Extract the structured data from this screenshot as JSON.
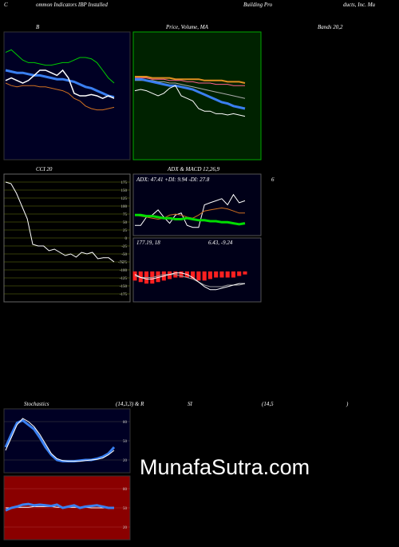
{
  "header": [
    "C",
    "ommon Indicators IBP Installed",
    "Building Pro",
    "ducts, Inc. Mu"
  ],
  "captions": {
    "row1": [
      "B",
      "Price, Volume, MA",
      "Bands 20,2"
    ],
    "row2": [
      "CCI 20",
      "ADX  & MACD 12,26,9",
      "6"
    ],
    "row3": [
      "Stochastics",
      "(14,3,3) & R",
      "SI",
      "(14,5",
      ")"
    ]
  },
  "watermark": "MunafaSutra.com",
  "chart_data": [
    {
      "type": "line",
      "background": "#000024",
      "ylim": [
        0,
        100
      ],
      "series": [
        {
          "color": "#00cc00",
          "values": [
            84,
            86,
            82,
            78,
            76,
            76,
            75,
            74,
            74,
            75,
            76,
            76,
            78,
            80,
            80,
            79,
            76,
            70,
            64,
            60
          ]
        },
        {
          "color": "#d07020",
          "values": [
            60,
            58,
            57,
            58,
            58,
            58,
            57,
            57,
            56,
            55,
            54,
            52,
            48,
            46,
            42,
            40,
            39,
            39,
            40,
            41
          ]
        },
        {
          "color": "#3a7ff0",
          "width": 3,
          "values": [
            70,
            69,
            68,
            68,
            67,
            66,
            66,
            65,
            64,
            63,
            63,
            62,
            61,
            59,
            57,
            56,
            54,
            52,
            50,
            49
          ]
        },
        {
          "color": "#ffffff",
          "width": 1.5,
          "values": [
            62,
            64,
            62,
            60,
            62,
            66,
            70,
            70,
            68,
            66,
            70,
            64,
            52,
            50,
            50,
            51,
            50,
            48,
            50,
            48
          ]
        }
      ]
    },
    {
      "type": "line",
      "background": "#002200",
      "ylim": [
        0,
        100
      ],
      "series": [
        {
          "color": "#e09020",
          "width": 2,
          "values": [
            65,
            65,
            65,
            64,
            64,
            64,
            64,
            63,
            63,
            63,
            63,
            63,
            62,
            62,
            62,
            62,
            61,
            61,
            61,
            60
          ]
        },
        {
          "color": "#ff6090",
          "values": [
            64,
            64,
            64,
            63,
            63,
            63,
            62,
            62,
            62,
            61,
            61,
            60,
            60,
            60,
            59,
            59,
            59,
            58,
            58,
            58
          ]
        },
        {
          "color": "#aaaaaa",
          "values": [
            62,
            62,
            62,
            62,
            61,
            61,
            60,
            60,
            59,
            58,
            57,
            56,
            55,
            54,
            53,
            52,
            51,
            50,
            49,
            48
          ]
        },
        {
          "color": "#3a7ff0",
          "width": 3,
          "values": [
            63,
            63,
            62,
            61,
            60,
            59,
            58,
            58,
            57,
            56,
            55,
            53,
            51,
            49,
            47,
            45,
            44,
            42,
            41,
            40
          ]
        },
        {
          "color": "#ffffff",
          "values": [
            54,
            55,
            54,
            52,
            50,
            52,
            56,
            58,
            50,
            48,
            46,
            40,
            38,
            38,
            36,
            36,
            35,
            36,
            35,
            34
          ]
        }
      ]
    },
    {
      "type": "line",
      "background": "#000000",
      "ylim": [
        -200,
        200
      ],
      "grid": true,
      "yticks": [
        175,
        150,
        125,
        100,
        75,
        50,
        25,
        0,
        -25,
        -50,
        -75,
        -100,
        -125,
        -150,
        -175
      ],
      "series": [
        {
          "color": "#ffffff",
          "values": [
            175,
            170,
            140,
            100,
            60,
            -20,
            -25,
            -25,
            -40,
            -35,
            -45,
            -55,
            -50,
            -60,
            -45,
            -50,
            -45,
            -65,
            -62,
            -62,
            -75
          ]
        }
      ]
    },
    {
      "type": "line",
      "background": "#000018",
      "ylim": [
        0,
        60
      ],
      "text": "ADX: 47.41 +DI: 9.94 -DI: 27.8",
      "series": [
        {
          "color": "#ffffff",
          "values": [
            10,
            10,
            18,
            20,
            25,
            18,
            12,
            20,
            22,
            10,
            8,
            8,
            30,
            32,
            34,
            36,
            30,
            40,
            32,
            34
          ]
        },
        {
          "color": "#d07020",
          "values": [
            20,
            19,
            18,
            17,
            16,
            17,
            20,
            21,
            20,
            18,
            17,
            20,
            24,
            25,
            26,
            27,
            26,
            24,
            22,
            22
          ]
        },
        {
          "color": "#00dd00",
          "width": 3,
          "values": [
            20,
            20,
            19,
            19,
            18,
            17,
            17,
            16,
            16,
            17,
            16,
            15,
            15,
            14,
            14,
            13,
            13,
            12,
            11,
            12
          ]
        }
      ]
    },
    {
      "type": "bar",
      "background": "#000018",
      "ylim": [
        -20,
        22
      ],
      "texts": [
        "177.19, 18",
        "6.43, -9.24"
      ],
      "bars": {
        "color": "#ff2020",
        "values": [
          -6,
          -7,
          -8,
          -8,
          -7,
          -6,
          -5,
          -4,
          -4,
          -4,
          -5,
          -6,
          -6,
          -5,
          -4,
          -4,
          -4,
          -4,
          -3,
          -2
        ]
      },
      "series": [
        {
          "color": "#999999",
          "values": [
            -3,
            -4,
            -4,
            -4,
            -3,
            -2,
            -2,
            -2,
            -3,
            -4,
            -5,
            -7,
            -9,
            -10,
            -10,
            -10,
            -9,
            -9,
            -9,
            -8
          ]
        },
        {
          "color": "#ffffff",
          "values": [
            -2,
            -4,
            -5,
            -5,
            -4,
            -3,
            -2,
            -1,
            -1,
            -2,
            -4,
            -7,
            -10,
            -12,
            -12,
            -11,
            -10,
            -9,
            -8,
            -8
          ]
        }
      ]
    },
    {
      "type": "line",
      "background": "#000024",
      "ylim": [
        0,
        100
      ],
      "grid": true,
      "yticks": [
        80,
        50,
        20
      ],
      "series": [
        {
          "color": "#3a7ff0",
          "width": 3,
          "values": [
            40,
            60,
            78,
            82,
            75,
            68,
            55,
            40,
            28,
            20,
            18,
            18,
            18,
            19,
            20,
            20,
            22,
            25,
            30,
            40
          ]
        },
        {
          "color": "#ffffff",
          "values": [
            35,
            55,
            75,
            85,
            80,
            72,
            60,
            45,
            30,
            22,
            19,
            18,
            18,
            18,
            19,
            20,
            21,
            23,
            28,
            35
          ]
        }
      ]
    },
    {
      "type": "line",
      "background": "#8a0000",
      "ylim": [
        0,
        100
      ],
      "grid": true,
      "yticks": [
        80,
        50,
        20
      ],
      "series": [
        {
          "color": "#ffffff",
          "values": [
            50,
            50,
            51,
            51,
            51,
            52,
            52,
            52,
            52,
            51,
            51,
            51,
            51,
            51,
            51,
            50,
            50,
            50,
            50,
            50
          ]
        },
        {
          "color": "#3a7ff0",
          "width": 3,
          "values": [
            46,
            50,
            52,
            55,
            56,
            54,
            55,
            54,
            53,
            55,
            50,
            52,
            54,
            50,
            52,
            53,
            54,
            52,
            50,
            50
          ]
        }
      ]
    }
  ]
}
